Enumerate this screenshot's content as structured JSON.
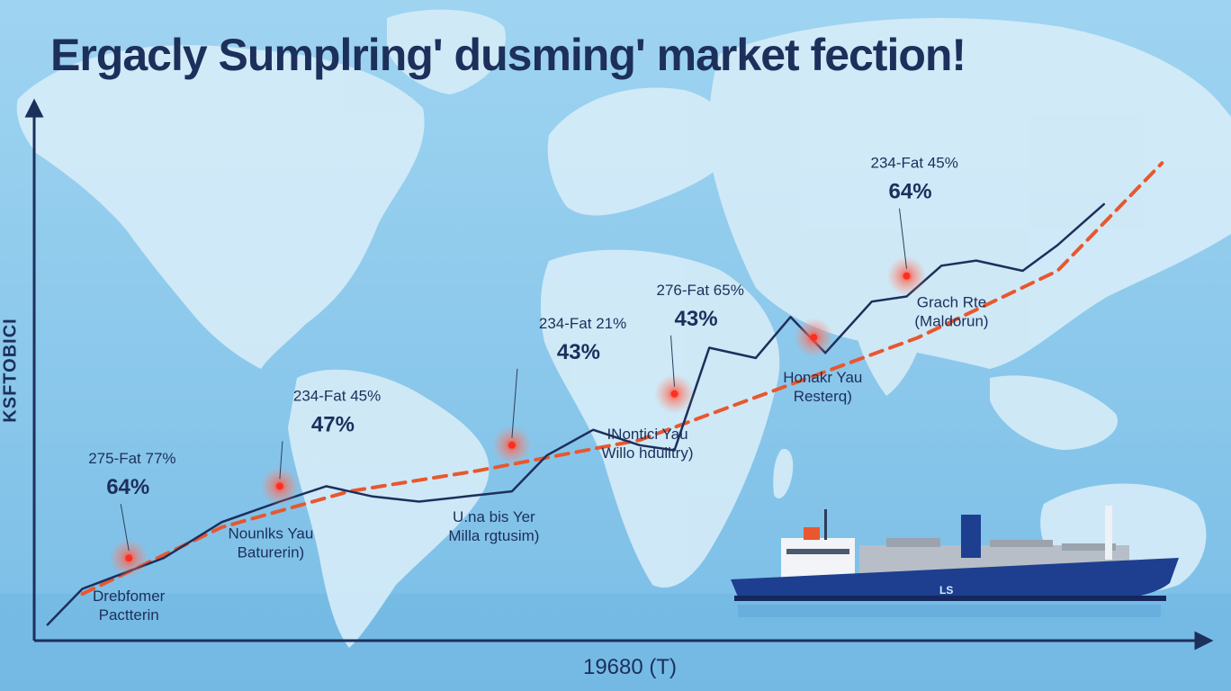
{
  "title": "Ergacly Sumplring' dusming' market fection!",
  "colors": {
    "ocean": "#8cc9ec",
    "land": "#d6ecf8",
    "axis": "#1d2f5b",
    "trend": "#e8572e",
    "series": "#1d2f5b",
    "ship_hull": "#1e3f8f"
  },
  "chart_data": {
    "type": "line",
    "title": "Ergacly Sumplring' dusming' market fection!",
    "xlabel": "19680 (T)",
    "ylabel": "KSFTOBICI",
    "xlim": [
      0,
      100
    ],
    "ylim": [
      0,
      100
    ],
    "grid": false,
    "legend": "none",
    "series": [
      {
        "role": "actual",
        "style": "solid",
        "x": [
          1,
          4,
          11,
          16,
          21,
          25,
          29,
          33,
          37,
          41,
          44,
          48,
          52,
          55,
          58,
          62,
          65,
          68,
          72,
          75,
          78,
          81,
          85,
          88,
          92
        ],
        "y": [
          1,
          8,
          14,
          21,
          25,
          28,
          26,
          25,
          26,
          27,
          34,
          39,
          36,
          35,
          55,
          53,
          61,
          54,
          64,
          65,
          71,
          72,
          70,
          75,
          83
        ]
      },
      {
        "role": "trend",
        "style": "dashed",
        "x": [
          4,
          16,
          27,
          38,
          52,
          64,
          76,
          88,
          97
        ],
        "y": [
          7,
          20,
          27,
          31,
          37,
          47,
          57,
          70,
          91
        ]
      }
    ],
    "annotations": [
      {
        "label": "275-Fat 77%",
        "value": "64%",
        "caption": "Drebfomer\nPactterin",
        "x": 8,
        "y": 14
      },
      {
        "label": "234-Fat 45%",
        "value": "47%",
        "caption": "Nounlks Yau\nBaturerin)",
        "x": 21,
        "y": 28
      },
      {
        "label": "234-Fat 21%",
        "value": "43%",
        "caption": "U.na bis Yer\nMilla rgtusim)",
        "x": 41,
        "y": 36
      },
      {
        "label": "276-Fat 65%",
        "value": "43%",
        "caption": "INontici Yau\nWillo hdulitry)",
        "x": 55,
        "y": 46
      },
      {
        "label": "",
        "value": "",
        "caption": "Honakr Yau\nResterq)",
        "x": 67,
        "y": 57
      },
      {
        "label": "234-Fat 45%",
        "value": "64%",
        "caption": "Grach Rte\n(Maldorun)",
        "x": 75,
        "y": 69
      }
    ]
  },
  "ship": {
    "hull_text": "LS"
  }
}
